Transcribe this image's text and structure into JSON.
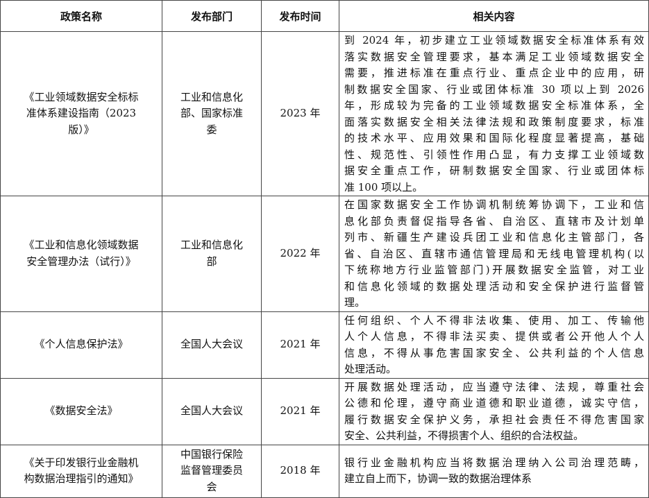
{
  "headers": [
    "政策名称",
    "发布部门",
    "发布时间",
    "相关内容"
  ],
  "rows": [
    {
      "name": [
        "《工业领域数据安全标标",
        "准体系建设指南（2023",
        "版）》"
      ],
      "dept": [
        "工业和信息化",
        "部、国家标准",
        "委"
      ],
      "year": "2023 年",
      "content": [
        "到 2024 年，初步建立工业领域数据安全标准体系有效",
        "落实数据安全管理要求，基本满足工业领域数据安全",
        "需要，推进标准在重点行业、重点企业中的应用，研",
        "制数据安全国家、行业或团体标准 30 项以上到 2026",
        "年，形成较为完备的工业领域数据安全标准体系，全",
        "面落实数据安全相关法律法规和政策制度要求，标准",
        "的技术水平、应用效果和国际化程度显著提高，基础",
        "性、规范性、引领性作用凸显，有力支撑工业领域数",
        "据安全重点工作，研制数据安全国家、行业或团体标",
        "准 100 项以上。"
      ]
    },
    {
      "name": [
        "《工业和信息化领域数据",
        "安全管理办法（试行）》"
      ],
      "dept": [
        "工业和信息化",
        "部"
      ],
      "year": "2022 年",
      "content": [
        "在国家数据安全工作协调机制统筹协调下，工业和信",
        "息化部负责督促指导各省、自治区、直辖市及计划单",
        "列市、新疆生产建设兵团工业和信息化主管部门，各",
        "省、自治区、直辖市通信管理局和无线电管理机构(以",
        "下统称地方行业监管部门)开展数据安全监管，对工业",
        "和信息化领域的数据处理活动和安全保护进行监督管",
        "理。"
      ]
    },
    {
      "name": [
        "《个人信息保护法》"
      ],
      "dept": [
        "全国人大会议"
      ],
      "year": "2021 年",
      "content": [
        "任何组织、个人不得非法收集、使用、加工、传输他",
        "人个人信息，不得非法买卖、提供或者公开他人个人",
        "信息，不得从事危害国家安全、公共利益的个人信息",
        "处理活动。"
      ]
    },
    {
      "name": [
        "《数据安全法》"
      ],
      "dept": [
        "全国人大会议"
      ],
      "year": "2021 年",
      "content": [
        "开展数据处理活动，应当遵守法律、法规，尊重社会",
        "公德和伦理，遵守商业道德和职业道德，诚实守信，",
        "履行数据安全保护义务，承担社会责任不得危害国家",
        "安全、公共利益，不得损害个人、组织的合法权益。"
      ]
    },
    {
      "name": [
        "《关于印发银行业金融机",
        "构数据治理指引的通知》"
      ],
      "dept": [
        "中国银行保险",
        "监督管理委员",
        "会"
      ],
      "year": "2018 年",
      "content": [
        "银行业金融机构应当将数据治理纳入公司治理范畴，",
        "建立自上而下，协调一致的数据治理体系"
      ]
    }
  ]
}
